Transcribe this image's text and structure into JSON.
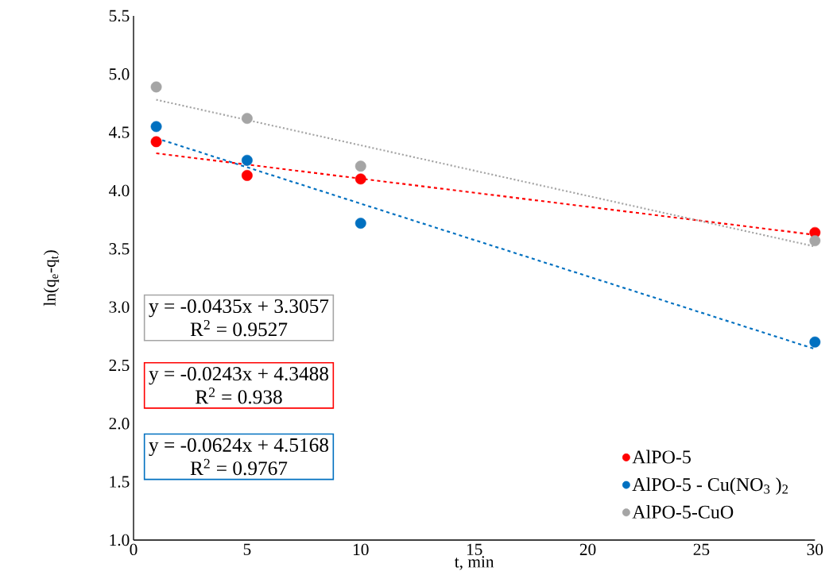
{
  "chart_data": {
    "type": "scatter",
    "xlabel": "t, min",
    "ylabel": "ln(q$_{e}$-q$_{t}$)",
    "xlim": [
      0,
      30
    ],
    "ylim": [
      1.0,
      5.5
    ],
    "xticks": [
      0,
      5,
      10,
      15,
      20,
      25,
      30
    ],
    "yticks": [
      {
        "value": 1.0,
        "label": "1.0"
      },
      {
        "value": 1.5,
        "label": "1.5"
      },
      {
        "value": 2.0,
        "label": "2.0"
      },
      {
        "value": 2.5,
        "label": "2.5"
      },
      {
        "value": 3.0,
        "label": "3.0"
      },
      {
        "value": 3.5,
        "label": "3.5"
      },
      {
        "value": 4.0,
        "label": "4.0"
      },
      {
        "value": 4.5,
        "label": "4.5"
      },
      {
        "value": 5.0,
        "label": "5.0"
      },
      {
        "value": 5.5,
        "label": "5.5"
      }
    ],
    "legend": "bottom right",
    "series": [
      {
        "name": "AlPO-5",
        "marker": "circle",
        "color": "#ff0000",
        "x": [
          1,
          5,
          10,
          30
        ],
        "values": [
          4.42,
          4.13,
          4.1,
          3.64
        ]
      },
      {
        "name": "AlPO-5 - Cu(NO$_{3}$ )$_{2}$",
        "marker": "circle",
        "color": "#0070c0",
        "x": [
          1,
          5,
          10,
          30
        ],
        "values": [
          4.55,
          4.26,
          3.72,
          2.7
        ]
      },
      {
        "name": "AlPO-5-CuO",
        "marker": "circle",
        "color": "#a5a5a5",
        "x": [
          1,
          5,
          10,
          30
        ],
        "values": [
          4.89,
          4.62,
          4.21,
          3.57
        ]
      },
      {
        "type": "line",
        "line_style": "dashed",
        "marker": "none",
        "color": "#ff0000",
        "x": [
          1,
          30
        ],
        "values": [
          4.32,
          3.62
        ]
      },
      {
        "type": "line",
        "line_style": "dashed",
        "marker": "none",
        "color": "#0070c0",
        "x": [
          1,
          30
        ],
        "values": [
          4.45,
          2.64
        ]
      },
      {
        "type": "line",
        "line_style": "dotted",
        "marker": "none",
        "color": "#a5a5a5",
        "x": [
          1,
          30
        ],
        "values": [
          4.78,
          3.52
        ]
      }
    ],
    "annotations": [
      "y = -0.0435x + 3.3057",
      "R$^{2}$ = 0.9527",
      "y = -0.0243x + 4.3488",
      "R$^{2}$ = 0.938",
      "y = -0.0624x + 4.5168",
      "R$^{2}$ = 0.9767"
    ]
  }
}
